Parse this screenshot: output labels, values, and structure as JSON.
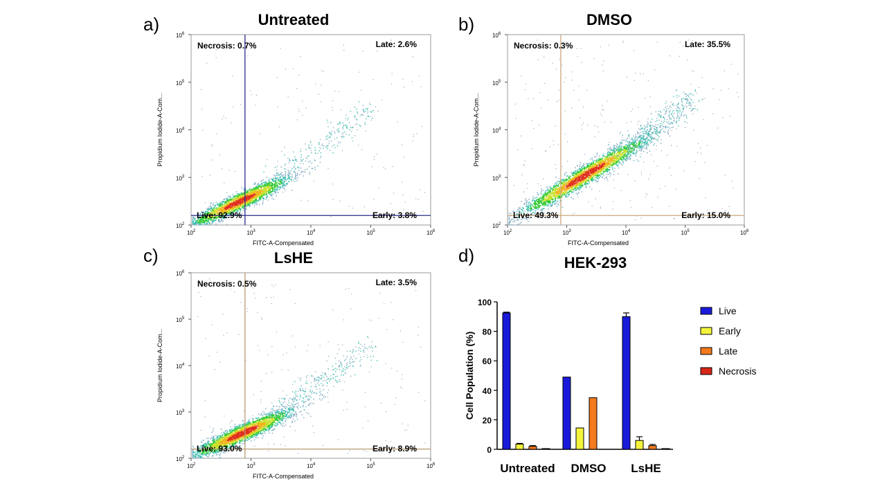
{
  "panels": [
    {
      "letter": "a)",
      "title": "Untreated",
      "gate_color": "#2a2a8a",
      "necrosis": "Necrosis:  0.7%",
      "late": "Late: 2.6%",
      "live": "Live: 92.9%",
      "early": "Early: 3.8%",
      "xlabel": "FITC-A-Compensated",
      "ylabel": "Propidium Iodide-A-Com..."
    },
    {
      "letter": "b)",
      "title": "DMSO",
      "gate_color": "#c9a77c",
      "necrosis": "Necrosis:  0.3%",
      "late": "Late: 35.5%",
      "live": "Live: 49.3%",
      "early": "Early: 15.0%",
      "xlabel": "FITC-A-Compensated",
      "ylabel": "Propidium Iodide-A-Com..."
    },
    {
      "letter": "c)",
      "title": "LsHE",
      "gate_color": "#b89a70",
      "necrosis": "Necrosis:  0.5%",
      "late": "Late: 3.5%",
      "live": "Live: 93.0%",
      "early": "Early: 8.9%",
      "xlabel": "FITC-A-Compensated",
      "ylabel": "Propidium Iodide-A-Com..."
    }
  ],
  "log_ticks": {
    "base": "10",
    "exponents": [
      "2",
      "3",
      "4",
      "5",
      "6"
    ]
  },
  "bar_panel": {
    "letter": "d)"
  },
  "chart_data": {
    "type": "bar",
    "title": "HEK-293",
    "ylabel": "Cell Population (%)",
    "xlabel": "",
    "categories": [
      "Untreated",
      "DMSO",
      "LsHE"
    ],
    "ylim": [
      0,
      100
    ],
    "yticks": [
      "0",
      "20",
      "40",
      "60",
      "80",
      "100"
    ],
    "series": [
      {
        "name": "Live",
        "color": "#1a1adb",
        "values": [
          92.5,
          49,
          90
        ],
        "errors": [
          0.5,
          0,
          2.5
        ]
      },
      {
        "name": "Early",
        "color": "#f4f43c",
        "values": [
          3.5,
          14.5,
          6
        ],
        "errors": [
          0.5,
          0,
          2.5
        ]
      },
      {
        "name": "Late",
        "color": "#f47a1c",
        "values": [
          2,
          35,
          2.5
        ],
        "errors": [
          0.5,
          0,
          0.8
        ]
      },
      {
        "name": "Necrosis",
        "color": "#d62718",
        "values": [
          0.5,
          0,
          0.5
        ],
        "errors": [
          0,
          0,
          0
        ]
      }
    ],
    "legend": "right"
  }
}
